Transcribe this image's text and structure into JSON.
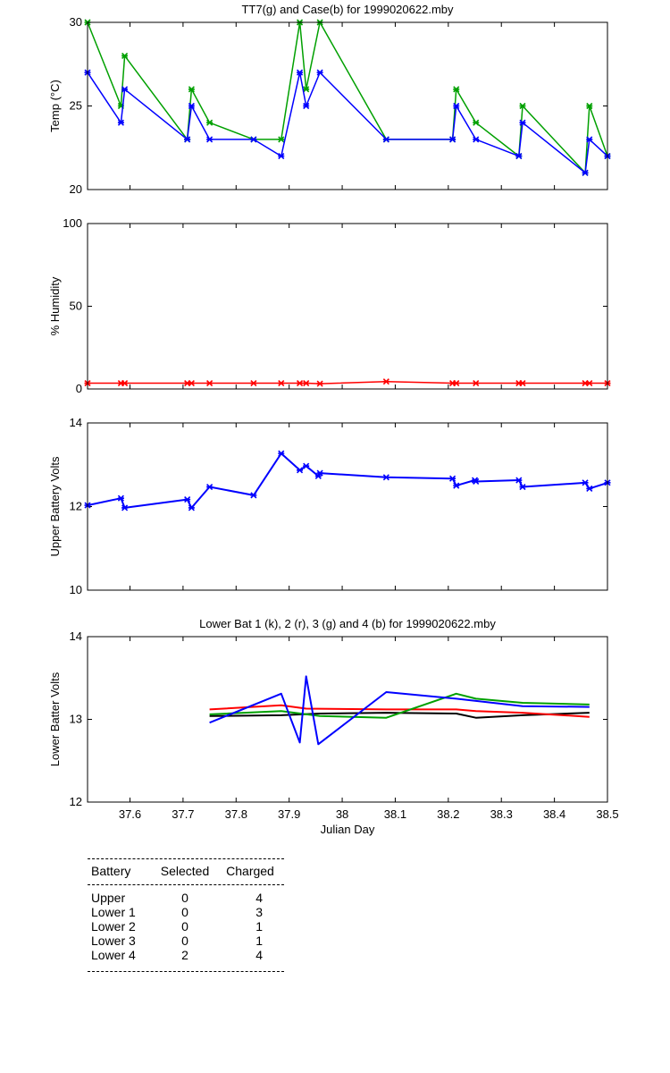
{
  "chart_data": [
    {
      "type": "line",
      "title": "TT7(g) and Case(b) for 1999020622.mby",
      "xlabel": "",
      "ylabel": "Temp  (°C)",
      "xlim": [
        37.52,
        38.5
      ],
      "ylim": [
        20,
        30
      ],
      "yticks": [
        "20",
        "25",
        "30"
      ],
      "grid": false,
      "series": [
        {
          "name": "TT7",
          "color": "#00a000",
          "x": [
            37.52,
            37.583,
            37.59,
            37.708,
            37.716,
            37.75,
            37.833,
            37.885,
            37.92,
            37.932,
            37.958,
            38.083,
            38.208,
            38.215,
            38.252,
            38.333,
            38.34,
            38.458,
            38.466,
            38.5
          ],
          "y": [
            30,
            25,
            28,
            23,
            26,
            24,
            23,
            23,
            30,
            26,
            30,
            23,
            23,
            26,
            24,
            22,
            25,
            21,
            25,
            22
          ]
        },
        {
          "name": "Case",
          "color": "#0000ff",
          "x": [
            37.52,
            37.583,
            37.59,
            37.708,
            37.716,
            37.75,
            37.833,
            37.885,
            37.92,
            37.932,
            37.958,
            38.083,
            38.208,
            38.215,
            38.252,
            38.333,
            38.34,
            38.458,
            38.466,
            38.5
          ],
          "y": [
            27,
            24,
            26,
            23,
            25,
            23,
            23,
            22,
            27,
            25,
            27,
            23,
            23,
            25,
            23,
            22,
            24,
            21,
            23,
            22
          ]
        }
      ]
    },
    {
      "type": "line",
      "title": "",
      "xlabel": "",
      "ylabel": "% Humidity",
      "xlim": [
        37.52,
        38.5
      ],
      "ylim": [
        0,
        100
      ],
      "yticks": [
        "0",
        "50",
        "100"
      ],
      "grid": false,
      "series": [
        {
          "name": "",
          "color": "#ff0000",
          "x": [
            37.52,
            37.583,
            37.59,
            37.708,
            37.716,
            37.75,
            37.833,
            37.885,
            37.92,
            37.932,
            37.958,
            38.083,
            38.208,
            38.215,
            38.252,
            38.333,
            38.34,
            38.458,
            38.466,
            38.5
          ],
          "y": [
            3.5,
            3.5,
            3.5,
            3.5,
            3.5,
            3.5,
            3.5,
            3.5,
            3.5,
            3.5,
            3.2,
            4.5,
            3.5,
            3.5,
            3.5,
            3.5,
            3.5,
            3.5,
            3.5,
            3.5
          ]
        }
      ]
    },
    {
      "type": "line",
      "title": "",
      "xlabel": "",
      "ylabel": "Upper Battery Volts",
      "xlim": [
        37.52,
        38.5
      ],
      "ylim": [
        10,
        14
      ],
      "yticks": [
        "10",
        "12",
        "14"
      ],
      "grid": false,
      "series": [
        {
          "name": "",
          "color": "#0000ff",
          "x": [
            37.52,
            37.583,
            37.59,
            37.708,
            37.716,
            37.75,
            37.833,
            37.885,
            37.92,
            37.932,
            37.955,
            37.958,
            38.083,
            38.208,
            38.215,
            38.25,
            38.252,
            38.333,
            38.34,
            38.458,
            38.466,
            38.5
          ],
          "y": [
            12.03,
            12.2,
            11.97,
            12.17,
            11.97,
            12.47,
            12.27,
            13.27,
            12.87,
            12.97,
            12.73,
            12.8,
            12.7,
            12.67,
            12.5,
            12.63,
            12.6,
            12.63,
            12.47,
            12.57,
            12.43,
            12.57
          ]
        }
      ]
    },
    {
      "type": "line",
      "title": "Lower Bat 1 (k), 2 (r), 3 (g) and 4 (b) for 1999020622.mby",
      "xlabel": "Julian Day",
      "ylabel": "Lower Batter Volts",
      "xlim": [
        37.52,
        38.5
      ],
      "ylim": [
        12,
        14
      ],
      "yticks": [
        "12",
        "13",
        "14"
      ],
      "xticks": [
        "37.6",
        "37.7",
        "37.8",
        "37.9",
        "38",
        "38.1",
        "38.2",
        "38.3",
        "38.4",
        "38.5"
      ],
      "grid": false,
      "series": [
        {
          "name": "1",
          "color": "#000000",
          "x": [
            37.75,
            37.885,
            37.958,
            38.083,
            38.215,
            38.252,
            38.34,
            38.466
          ],
          "y": [
            13.04,
            13.05,
            13.07,
            13.08,
            13.07,
            13.02,
            13.05,
            13.08
          ]
        },
        {
          "name": "2",
          "color": "#ff0000",
          "x": [
            37.75,
            37.885,
            37.932,
            38.083,
            38.215,
            38.252,
            38.34,
            38.466
          ],
          "y": [
            13.12,
            13.17,
            13.13,
            13.12,
            13.12,
            13.1,
            13.08,
            13.03
          ]
        },
        {
          "name": "3",
          "color": "#00a000",
          "x": [
            37.75,
            37.885,
            37.958,
            38.083,
            38.215,
            38.252,
            38.34,
            38.466
          ],
          "y": [
            13.06,
            13.1,
            13.04,
            13.02,
            13.31,
            13.25,
            13.2,
            13.18
          ]
        },
        {
          "name": "4",
          "color": "#0000ff",
          "x": [
            37.75,
            37.885,
            37.92,
            37.932,
            37.955,
            38.083,
            38.215,
            38.34,
            38.466
          ],
          "y": [
            12.96,
            13.31,
            12.72,
            13.52,
            12.7,
            13.33,
            13.25,
            13.16,
            13.15
          ]
        }
      ]
    }
  ],
  "x_common_ticks": [
    "37.6",
    "37.7",
    "37.8",
    "37.9",
    "38",
    "38.1",
    "38.2",
    "38.3",
    "38.4",
    "38.5"
  ],
  "battery_table": {
    "headers": [
      "Battery",
      "Selected",
      "Charged"
    ],
    "rows": [
      {
        "battery": "Upper",
        "selected": "0",
        "charged": "4"
      },
      {
        "battery": "Lower 1",
        "selected": "0",
        "charged": "3"
      },
      {
        "battery": "Lower 2",
        "selected": "0",
        "charged": "1"
      },
      {
        "battery": "Lower 3",
        "selected": "0",
        "charged": "1"
      },
      {
        "battery": "Lower 4",
        "selected": "2",
        "charged": "4"
      }
    ]
  }
}
